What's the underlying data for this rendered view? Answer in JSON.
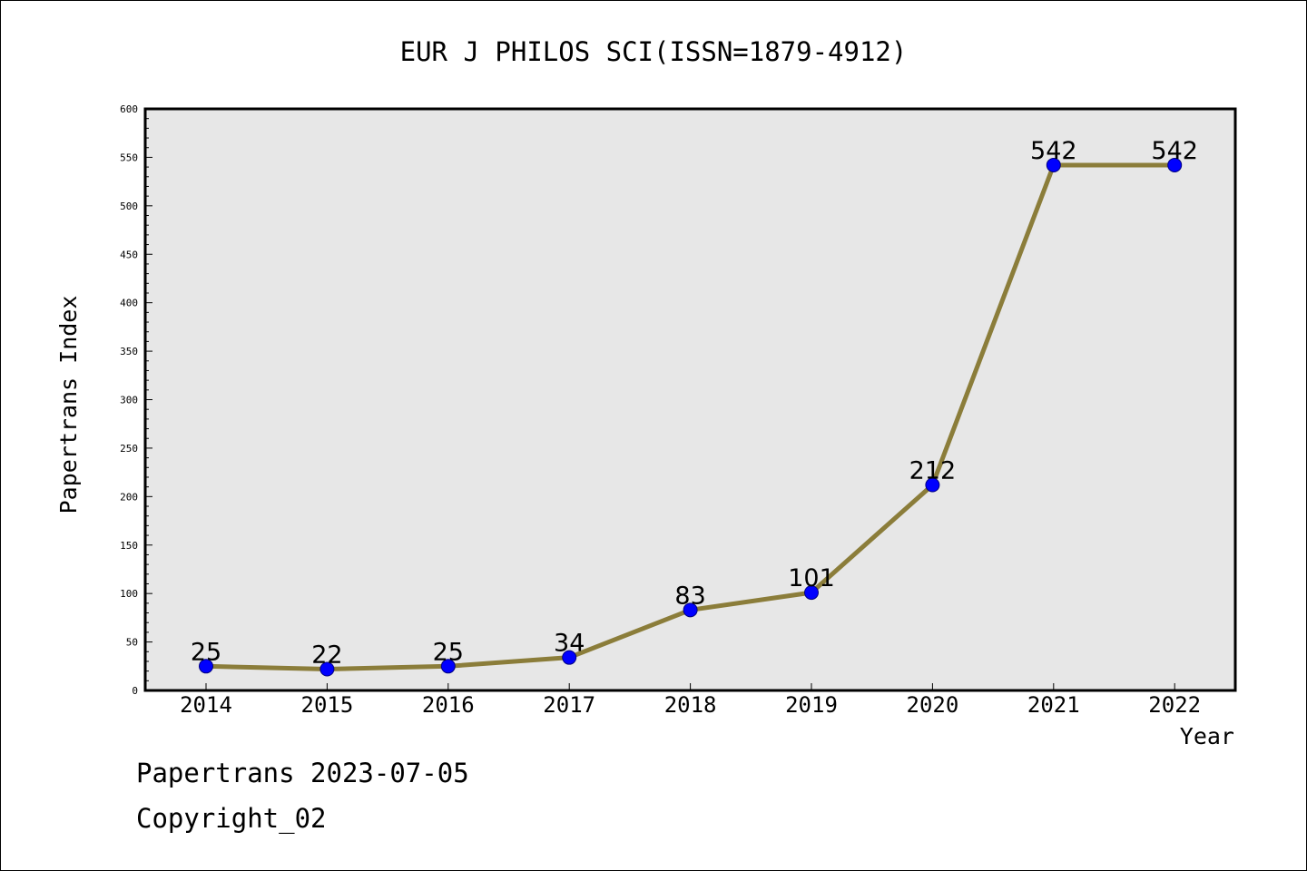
{
  "colors": {
    "background": "#ffffff",
    "plot_background": "#e7e7e7",
    "line": "#8b7d3a",
    "marker": "#0000ff",
    "marker_edge": "#000080",
    "axis": "#000000"
  },
  "footer": {
    "source": "Papertrans 2023-07-05",
    "copyright": "Copyright_02"
  },
  "chart_data": {
    "type": "line",
    "title": "EUR J PHILOS SCI(ISSN=1879-4912)",
    "xlabel": "Year",
    "ylabel": "Papertrans Index",
    "categories": [
      "2014",
      "2015",
      "2016",
      "2017",
      "2018",
      "2019",
      "2020",
      "2021",
      "2022"
    ],
    "series": [
      {
        "values": [
          25,
          22,
          25,
          34,
          83,
          101,
          212,
          542,
          542
        ]
      }
    ],
    "data_labels": [
      "25",
      "22",
      "25",
      "34",
      "83",
      "101",
      "212",
      "542",
      "542"
    ],
    "ylim": [
      0,
      600
    ],
    "yticks": [
      "0",
      "50",
      "100",
      "150",
      "200",
      "250",
      "300",
      "350",
      "400",
      "450",
      "500",
      "550",
      "600"
    ],
    "grid": false,
    "legend": "none"
  }
}
